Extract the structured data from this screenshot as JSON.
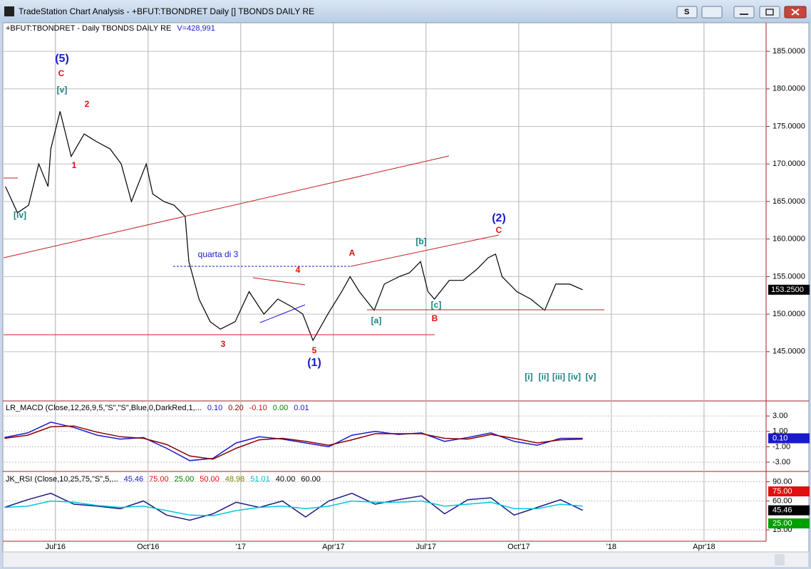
{
  "window": {
    "title": "TradeStation Chart Analysis - +BFUT:TBONDRET Daily [] TBONDS DAILY RE",
    "button": "S"
  },
  "chart_data": [
    {
      "type": "line",
      "header": "+BFUT:TBONDRET - Daily  TBONDS DAILY RE",
      "volume_label": "V=428,991",
      "color": "#000000",
      "x": [
        -0.54,
        -0.41,
        -0.29,
        -0.18,
        -0.08,
        -0.05,
        0.05,
        0.17,
        0.31,
        0.44,
        0.59,
        0.71,
        0.82,
        0.98,
        1.05,
        1.17,
        1.28,
        1.4,
        1.44,
        1.55,
        1.67,
        1.78,
        1.94,
        2.09,
        2.25,
        2.4,
        2.55,
        2.67,
        2.78,
        2.94,
        3.09,
        3.18,
        3.28,
        3.44,
        3.55,
        3.71,
        3.82,
        3.94,
        4.02,
        4.09,
        4.25,
        4.4,
        4.55,
        4.67,
        4.75,
        4.82,
        4.98,
        5.13,
        5.28,
        5.4,
        5.55,
        5.69
      ],
      "values": [
        167,
        163.5,
        164.5,
        170,
        167,
        172,
        177,
        171,
        174,
        173,
        172,
        170,
        165,
        170,
        166,
        165,
        164.5,
        163,
        157,
        152,
        149,
        148,
        149,
        153,
        150,
        152,
        151,
        150,
        146.5,
        150,
        153,
        155,
        153,
        150.5,
        154,
        155,
        155.5,
        157,
        153,
        152,
        154.5,
        154.5,
        156,
        157.5,
        158,
        155,
        153,
        152,
        150.5,
        154,
        154,
        153.25
      ],
      "xlim": [
        -0.56,
        7.67
      ],
      "xticks": [
        {
          "value": 0,
          "label": "Jul'16"
        },
        {
          "value": 1,
          "label": "Oct'16"
        },
        {
          "value": 2,
          "label": "'17"
        },
        {
          "value": 3,
          "label": "Apr'17"
        },
        {
          "value": 4,
          "label": "Jul'17"
        },
        {
          "value": 5,
          "label": "Oct'17"
        },
        {
          "value": 6,
          "label": "'18"
        },
        {
          "value": 7,
          "label": "Apr'18"
        }
      ],
      "ylim": [
        139.2,
        188.8
      ],
      "yticks": [
        {
          "value": 145,
          "label": "145.0000"
        },
        {
          "value": 150,
          "label": "150.0000"
        },
        {
          "value": 155,
          "label": "155.0000"
        },
        {
          "value": 160,
          "label": "160.0000"
        },
        {
          "value": 165,
          "label": "165.0000"
        },
        {
          "value": 170,
          "label": "170.0000"
        },
        {
          "value": 175,
          "label": "175.0000"
        },
        {
          "value": 180,
          "label": "180.0000"
        },
        {
          "value": 185,
          "label": "185.0000"
        }
      ],
      "last_value": {
        "value": 153.25,
        "label": "153.2500"
      },
      "annotations": [
        {
          "text": "(5)",
          "color": "#1a1acc"
        },
        {
          "text": "C",
          "color": "#e01010"
        },
        {
          "text": "[v]",
          "color": "#1a8080"
        },
        {
          "text": "2",
          "color": "#e01010"
        },
        {
          "text": "1",
          "color": "#e01010"
        },
        {
          "text": "[iv]",
          "color": "#1a8080"
        },
        {
          "text": "quarta di 3",
          "color": "#1a1acc"
        },
        {
          "text": "3",
          "color": "#e01010"
        },
        {
          "text": "4",
          "color": "#e01010"
        },
        {
          "text": "5",
          "color": "#e01010"
        },
        {
          "text": "(1)",
          "color": "#1a1acc"
        },
        {
          "text": "A",
          "color": "#e01010"
        },
        {
          "text": "[a]",
          "color": "#1a8080"
        },
        {
          "text": "[b]",
          "color": "#1a8080"
        },
        {
          "text": "[c]",
          "color": "#1a8080"
        },
        {
          "text": "B",
          "color": "#e01010"
        },
        {
          "text": "(2)",
          "color": "#1a1acc"
        },
        {
          "text": "C",
          "color": "#e01010"
        },
        {
          "text": "[i]",
          "color": "#1a8080"
        },
        {
          "text": "[ii]",
          "color": "#1a8080"
        },
        {
          "text": "[iii]",
          "color": "#1a8080"
        },
        {
          "text": "[iv]",
          "color": "#1a8080"
        },
        {
          "text": "[v]",
          "color": "#1a8080"
        }
      ]
    },
    {
      "type": "line",
      "header": "LR_MACD (Close,12,26,9,5,\"S\",\"S\",Blue,0,DarkRed,1,...",
      "header_values": [
        {
          "text": "0.10",
          "color": "#1a1acc"
        },
        {
          "text": "0.20",
          "color": "#8b0000"
        },
        {
          "text": "-0.10",
          "color": "#e01010"
        },
        {
          "text": "0.00",
          "color": "#008000"
        },
        {
          "text": "0.01",
          "color": "#1a1acc"
        }
      ],
      "x": [
        -0.55,
        -0.3,
        -0.05,
        0.2,
        0.45,
        0.7,
        0.95,
        1.2,
        1.45,
        1.7,
        1.95,
        2.2,
        2.45,
        2.7,
        2.95,
        3.2,
        3.45,
        3.7,
        3.95,
        4.2,
        4.45,
        4.7,
        4.95,
        5.2,
        5.45,
        5.69
      ],
      "series": [
        {
          "color": "#1a1acc",
          "values": [
            0.2,
            0.8,
            2.2,
            1.5,
            0.5,
            0,
            0.2,
            -1.2,
            -2.8,
            -2.5,
            -0.5,
            0.3,
            0,
            -0.5,
            -1.0,
            0.5,
            1.0,
            0.6,
            0.8,
            -0.3,
            0.2,
            0.8,
            -0.3,
            -0.8,
            0.1,
            0.1
          ]
        },
        {
          "color": "#8b0000",
          "values": [
            0.1,
            0.5,
            1.6,
            1.7,
            0.9,
            0.3,
            0.1,
            -0.7,
            -2.2,
            -2.6,
            -1.2,
            -0.1,
            0.1,
            -0.3,
            -0.8,
            -0.1,
            0.7,
            0.7,
            0.7,
            0.1,
            0.0,
            0.6,
            0.1,
            -0.5,
            -0.1,
            0.0
          ]
        }
      ],
      "ylim": [
        -4.02,
        4.77
      ],
      "yticks": [
        {
          "value": 3,
          "label": "3.00"
        },
        {
          "value": 1,
          "label": "1.00"
        },
        {
          "value": -1,
          "label": "-1.00"
        },
        {
          "value": -3,
          "label": "-3.00"
        }
      ],
      "markers": [
        {
          "value": 0.1,
          "label": "0.10",
          "color": "#1a1acc"
        }
      ]
    },
    {
      "type": "line",
      "header": "JK_RSI (Close,10,25,75,\"S\",5,...",
      "header_values": [
        {
          "text": "45.46",
          "color": "#1a1acc"
        },
        {
          "text": "75.00",
          "color": "#e01010"
        },
        {
          "text": "25.00",
          "color": "#008000"
        },
        {
          "text": "50.00",
          "color": "#e01010"
        },
        {
          "text": "48.98",
          "color": "#808000"
        },
        {
          "text": "51.01",
          "color": "#00c0c0"
        },
        {
          "text": "40.00",
          "color": "#000000"
        },
        {
          "text": "60.00",
          "color": "#000000"
        }
      ],
      "x": [
        -0.55,
        -0.3,
        -0.05,
        0.2,
        0.45,
        0.7,
        0.95,
        1.2,
        1.45,
        1.7,
        1.95,
        2.2,
        2.45,
        2.7,
        2.95,
        3.2,
        3.45,
        3.7,
        3.95,
        4.2,
        4.45,
        4.7,
        4.95,
        5.2,
        5.45,
        5.69
      ],
      "series": [
        {
          "color": "#1a1a80",
          "values": [
            50,
            62,
            72,
            55,
            52,
            48,
            60,
            38,
            30,
            40,
            58,
            50,
            60,
            35,
            60,
            72,
            55,
            62,
            68,
            40,
            62,
            65,
            38,
            50,
            62,
            45.46
          ]
        },
        {
          "color": "#00c8d8",
          "values": [
            50,
            52,
            60,
            58,
            53,
            50,
            52,
            45,
            38,
            37,
            45,
            50,
            52,
            48,
            52,
            60,
            58,
            58,
            60,
            52,
            55,
            58,
            48,
            48,
            55,
            52
          ]
        }
      ],
      "ylim": [
        2.8,
        102.8
      ],
      "yticks": [
        {
          "value": 90,
          "label": "90.00"
        },
        {
          "value": 60,
          "label": "60.00"
        },
        {
          "value": 15,
          "label": "15.00"
        }
      ],
      "markers": [
        {
          "value": 75,
          "label": "75.00",
          "color": "#e01010"
        },
        {
          "value": 45.46,
          "label": "45.46",
          "color": "#000000"
        },
        {
          "value": 25,
          "label": "25.00",
          "color": "#00a000"
        }
      ]
    }
  ]
}
